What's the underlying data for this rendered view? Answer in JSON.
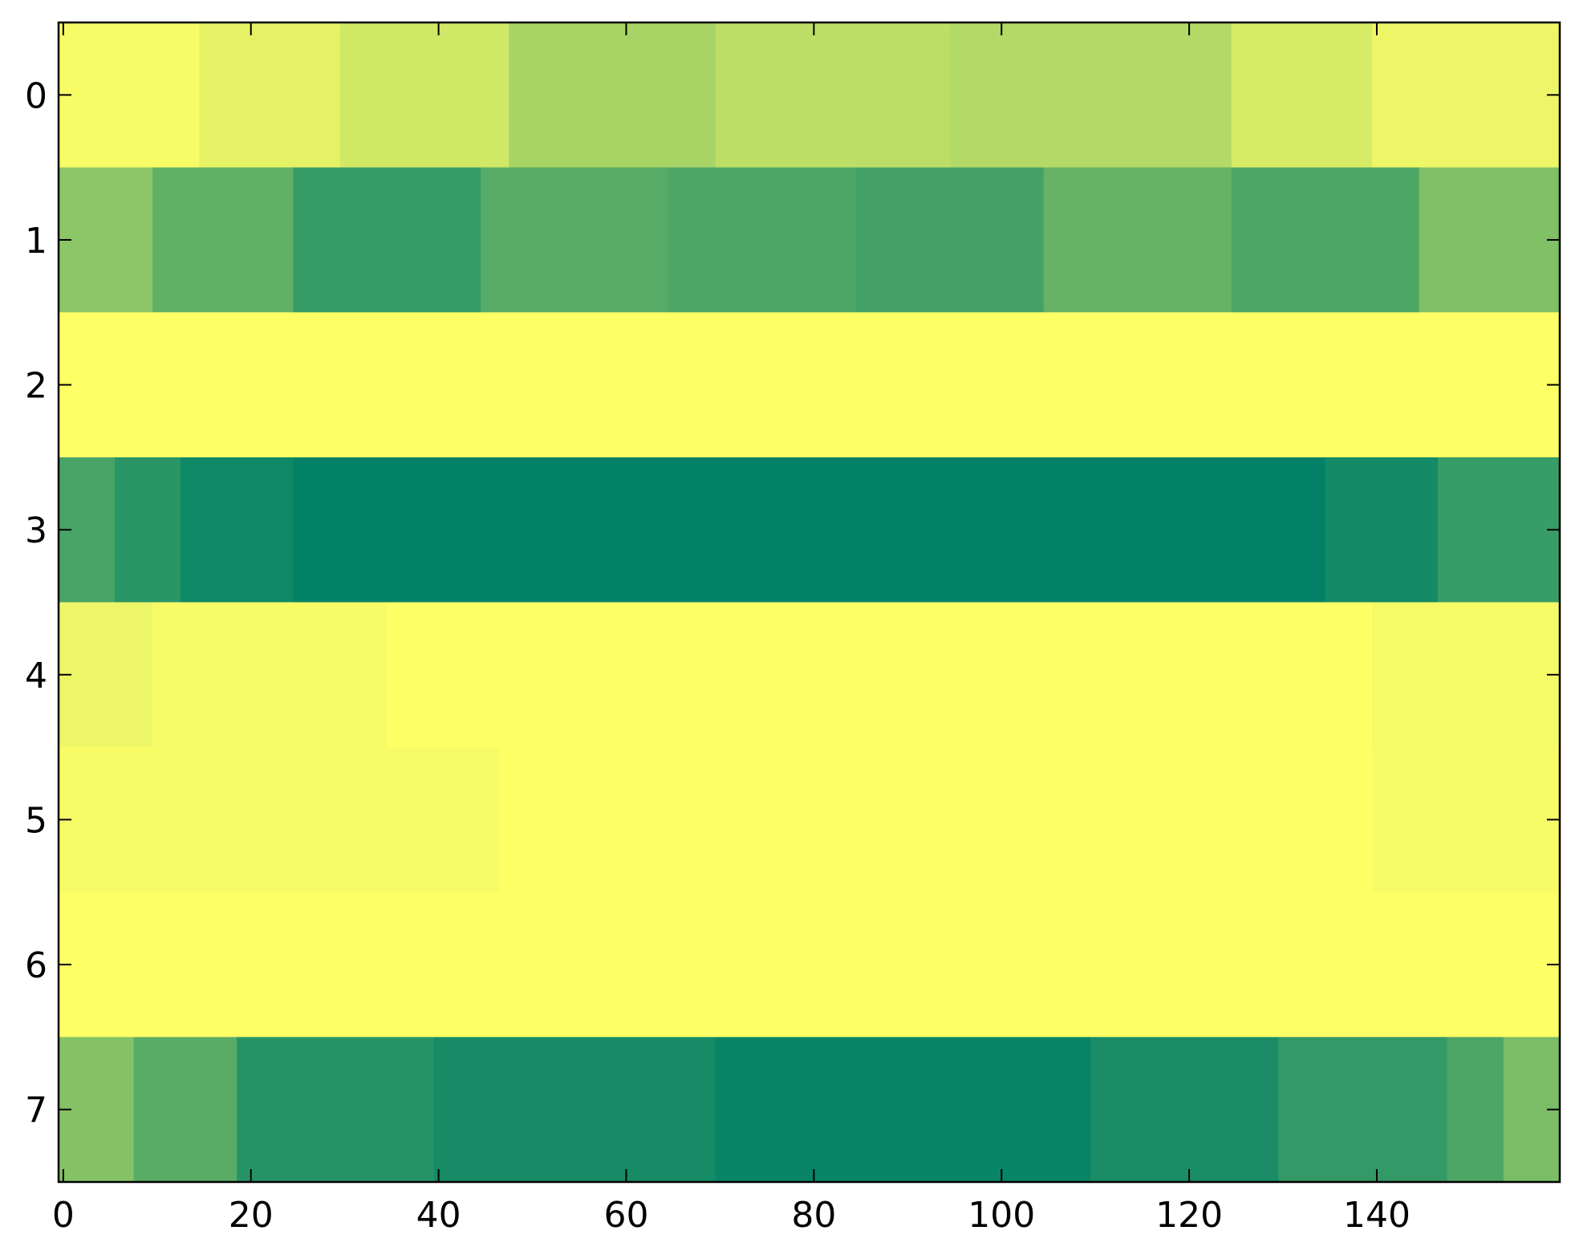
{
  "chart_data": {
    "type": "heatmap",
    "title": "",
    "xlabel": "",
    "ylabel": "",
    "colormap": "summer",
    "colormap_endpoints": [
      "#008066",
      "#ffff66"
    ],
    "x_range": [
      0,
      159
    ],
    "y_range": [
      0,
      7
    ],
    "x_ticks": [
      0,
      20,
      40,
      60,
      80,
      100,
      120,
      140
    ],
    "y_ticks": [
      0,
      1,
      2,
      3,
      4,
      5,
      6,
      7
    ],
    "rows": [
      {
        "row": 0,
        "segments": [
          {
            "from": 0,
            "to": 15,
            "value": 0.97
          },
          {
            "from": 15,
            "to": 30,
            "value": 0.9
          },
          {
            "from": 30,
            "to": 48,
            "value": 0.82
          },
          {
            "from": 48,
            "to": 70,
            "value": 0.66
          },
          {
            "from": 70,
            "to": 95,
            "value": 0.74
          },
          {
            "from": 95,
            "to": 125,
            "value": 0.7
          },
          {
            "from": 125,
            "to": 140,
            "value": 0.84
          },
          {
            "from": 140,
            "to": 160,
            "value": 0.93
          }
        ]
      },
      {
        "row": 1,
        "segments": [
          {
            "from": 0,
            "to": 10,
            "value": 0.55
          },
          {
            "from": 10,
            "to": 25,
            "value": 0.38
          },
          {
            "from": 25,
            "to": 45,
            "value": 0.22
          },
          {
            "from": 45,
            "to": 65,
            "value": 0.34
          },
          {
            "from": 65,
            "to": 85,
            "value": 0.3
          },
          {
            "from": 85,
            "to": 105,
            "value": 0.27
          },
          {
            "from": 105,
            "to": 125,
            "value": 0.4
          },
          {
            "from": 125,
            "to": 145,
            "value": 0.3
          },
          {
            "from": 145,
            "to": 160,
            "value": 0.5
          }
        ]
      },
      {
        "row": 2,
        "segments": [
          {
            "from": 0,
            "to": 160,
            "value": 1.0
          }
        ]
      },
      {
        "row": 3,
        "segments": [
          {
            "from": 0,
            "to": 6,
            "value": 0.28
          },
          {
            "from": 6,
            "to": 13,
            "value": 0.16
          },
          {
            "from": 13,
            "to": 25,
            "value": 0.06
          },
          {
            "from": 25,
            "to": 135,
            "value": 0.01
          },
          {
            "from": 135,
            "to": 147,
            "value": 0.08
          },
          {
            "from": 147,
            "to": 160,
            "value": 0.22
          }
        ]
      },
      {
        "row": 4,
        "segments": [
          {
            "from": 0,
            "to": 10,
            "value": 0.93
          },
          {
            "from": 10,
            "to": 35,
            "value": 0.97
          },
          {
            "from": 35,
            "to": 140,
            "value": 1.0
          },
          {
            "from": 140,
            "to": 160,
            "value": 0.96
          }
        ]
      },
      {
        "row": 5,
        "segments": [
          {
            "from": 0,
            "to": 47,
            "value": 0.97
          },
          {
            "from": 47,
            "to": 140,
            "value": 1.0
          },
          {
            "from": 140,
            "to": 160,
            "value": 0.97
          }
        ]
      },
      {
        "row": 6,
        "segments": [
          {
            "from": 0,
            "to": 160,
            "value": 1.0
          }
        ]
      },
      {
        "row": 7,
        "segments": [
          {
            "from": 0,
            "to": 8,
            "value": 0.52
          },
          {
            "from": 8,
            "to": 19,
            "value": 0.35
          },
          {
            "from": 19,
            "to": 40,
            "value": 0.15
          },
          {
            "from": 40,
            "to": 70,
            "value": 0.09
          },
          {
            "from": 70,
            "to": 110,
            "value": 0.03
          },
          {
            "from": 110,
            "to": 130,
            "value": 0.1
          },
          {
            "from": 130,
            "to": 148,
            "value": 0.2
          },
          {
            "from": 148,
            "to": 154,
            "value": 0.3
          },
          {
            "from": 154,
            "to": 160,
            "value": 0.48
          }
        ]
      }
    ]
  }
}
